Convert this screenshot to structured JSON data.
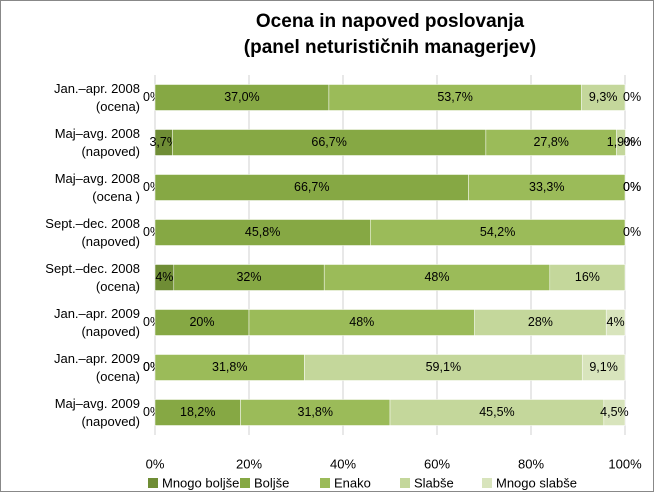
{
  "chart_data": {
    "type": "bar",
    "orientation": "horizontal",
    "stacked": true,
    "title": [
      "Ocena in napoved poslovanja",
      "(panel neturističnih managerjev)"
    ],
    "categories": [
      [
        "Jan.–apr. 2008",
        "(ocena)"
      ],
      [
        "Maj–avg. 2008",
        "(napoved)"
      ],
      [
        "Maj–avg. 2008",
        "(ocena )"
      ],
      [
        "Sept.–dec. 2008",
        "(napoved)"
      ],
      [
        "Sept.–dec. 2008",
        "(ocena)"
      ],
      [
        "Jan.–apr. 2009",
        "(napoved)"
      ],
      [
        "Jan.–apr. 2009",
        "(ocena)"
      ],
      [
        "Maj–avg. 2009",
        "(napoved)"
      ]
    ],
    "series": [
      {
        "name": "Mnogo boljše",
        "color": "#6f8d35",
        "values": [
          0,
          3.7,
          0,
          0,
          4,
          0,
          0,
          0
        ],
        "value_labels": [
          "0%",
          "3,7%",
          "0%",
          "0%",
          "4%",
          "0%",
          "0%",
          "0%"
        ]
      },
      {
        "name": "Boljše",
        "color": "#86a844",
        "values": [
          37.0,
          66.7,
          66.7,
          45.8,
          32,
          20,
          0,
          18.2
        ],
        "value_labels": [
          "37,0%",
          "66,7%",
          "66,7%",
          "45,8%",
          "32%",
          "20%",
          "0%",
          "18,2%"
        ]
      },
      {
        "name": "Enako",
        "color": "#9bbb59",
        "values": [
          53.7,
          27.8,
          33.3,
          54.2,
          48,
          48,
          31.8,
          31.8
        ],
        "value_labels": [
          "53,7%",
          "27,8%",
          "33,3%",
          "54,2%",
          "48%",
          "48%",
          "31,8%",
          "31,8%"
        ]
      },
      {
        "name": "Slabše",
        "color": "#c4d79b",
        "values": [
          9.3,
          1.9,
          0,
          0,
          16,
          28,
          59.1,
          45.5
        ],
        "value_labels": [
          "9,3%",
          "1,9%",
          "0%",
          null,
          "16%",
          "28%",
          "59,1%",
          "45,5%"
        ]
      },
      {
        "name": "Mnogo slabše",
        "color": "#d8e4bc",
        "values": [
          0,
          0,
          0,
          0,
          0,
          4,
          9.1,
          4.5
        ],
        "value_labels": [
          "0%",
          "0%",
          "0%",
          "0%",
          null,
          "4%",
          "9,1%",
          "4,5%"
        ]
      }
    ],
    "xlim": [
      0,
      100
    ],
    "xticks": [
      {
        "value": 0,
        "label": "0%"
      },
      {
        "value": 20,
        "label": "20%"
      },
      {
        "value": 40,
        "label": "40%"
      },
      {
        "value": 60,
        "label": "60%"
      },
      {
        "value": 80,
        "label": "80%"
      },
      {
        "value": 100,
        "label": "100%"
      }
    ],
    "grid": true,
    "legend": "bottom"
  }
}
